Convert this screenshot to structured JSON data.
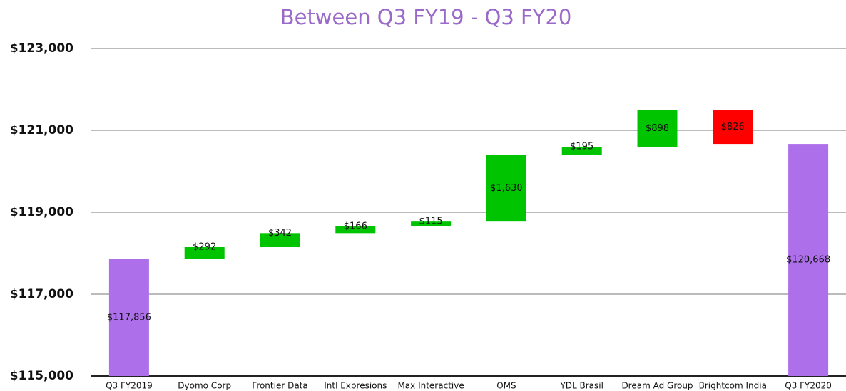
{
  "chart_data": {
    "type": "waterfall",
    "title": "Between Q3 FY19 - Q3 FY20",
    "categories": [
      "Q3 FY2019",
      "Dyomo Corp",
      "Frontier Data",
      "Intl Expresions",
      "Max Interactive",
      "OMS",
      "YDL Brasil",
      "Dream Ad Group",
      "Brightcom India",
      "Q3 FY2020"
    ],
    "values": [
      117856,
      292,
      342,
      166,
      115,
      1630,
      195,
      898,
      -826,
      120668
    ],
    "value_labels": [
      "$117,856",
      "$292",
      "$342",
      "$166",
      "$115",
      "$1,630",
      "$195",
      "$898",
      "$826",
      "$120,668"
    ],
    "measure": [
      "total",
      "relative",
      "relative",
      "relative",
      "relative",
      "relative",
      "relative",
      "relative",
      "relative",
      "total"
    ],
    "colors": {
      "total": "#ad6fea",
      "increase": "#00c400",
      "decrease": "#ff0000"
    },
    "ylim": [
      115000,
      123000
    ],
    "yticks": [
      {
        "value": 115000,
        "label": "$115,000"
      },
      {
        "value": 117000,
        "label": "$117,000"
      },
      {
        "value": 119000,
        "label": "$119,000"
      },
      {
        "value": 121000,
        "label": "$121,000"
      },
      {
        "value": 123000,
        "label": "$123,000"
      }
    ],
    "grid": true
  }
}
